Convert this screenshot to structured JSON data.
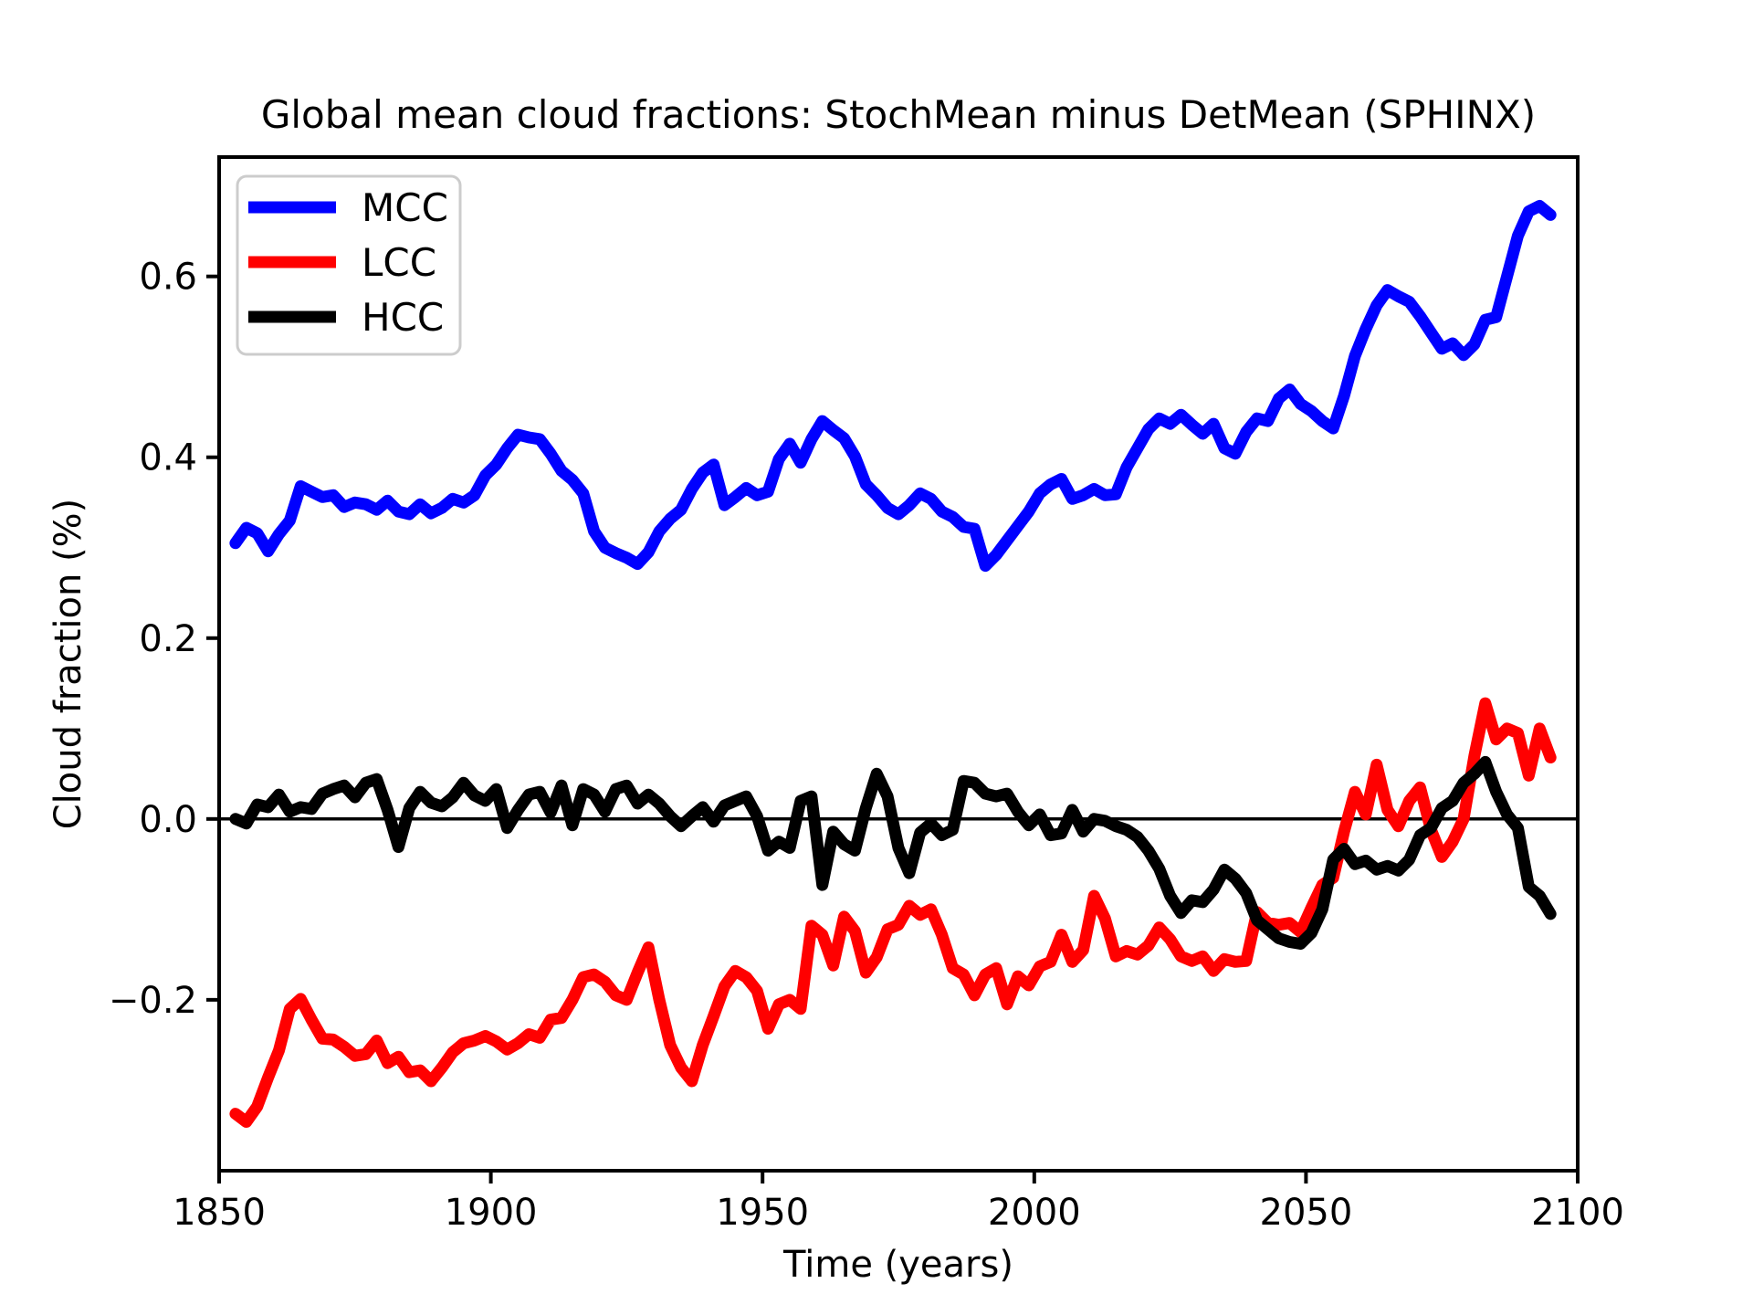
{
  "chart_data": {
    "type": "line",
    "title": "Global mean cloud fractions: StochMean minus DetMean (SPHINX)",
    "xlabel": "Time (years)",
    "ylabel": "Cloud fraction (%)",
    "xlim": [
      1850,
      2100
    ],
    "ylim": [
      -0.389,
      0.732
    ],
    "grid": false,
    "zero_line": 0.0,
    "legend_position": "upper left",
    "x_ticks": {
      "values": [
        1850,
        1900,
        1950,
        2000,
        2050,
        2100
      ],
      "labels": [
        "1850",
        "1900",
        "1950",
        "2000",
        "2050",
        "2100"
      ]
    },
    "y_ticks": {
      "values": [
        0.6,
        0.4,
        0.2,
        0.0,
        -0.2
      ],
      "labels": [
        "0.6",
        "0.4",
        "0.2",
        "0.0",
        "−0.2"
      ]
    },
    "years": [
      1853,
      1855,
      1857,
      1859,
      1861,
      1863,
      1865,
      1867,
      1869,
      1871,
      1873,
      1875,
      1877,
      1879,
      1881,
      1883,
      1885,
      1887,
      1889,
      1891,
      1893,
      1895,
      1897,
      1899,
      1901,
      1903,
      1905,
      1907,
      1909,
      1911,
      1913,
      1915,
      1917,
      1919,
      1921,
      1923,
      1925,
      1927,
      1929,
      1931,
      1933,
      1935,
      1937,
      1939,
      1941,
      1943,
      1945,
      1947,
      1949,
      1951,
      1953,
      1955,
      1957,
      1959,
      1961,
      1963,
      1965,
      1967,
      1969,
      1971,
      1973,
      1975,
      1977,
      1979,
      1981,
      1983,
      1985,
      1987,
      1989,
      1991,
      1993,
      1995,
      1997,
      1999,
      2001,
      2003,
      2005,
      2007,
      2009,
      2011,
      2013,
      2015,
      2017,
      2019,
      2021,
      2023,
      2025,
      2027,
      2029,
      2031,
      2033,
      2035,
      2037,
      2039,
      2041,
      2043,
      2045,
      2047,
      2049,
      2051,
      2053,
      2055,
      2057,
      2059,
      2061,
      2063,
      2065,
      2067,
      2069,
      2071,
      2073,
      2075,
      2077,
      2079,
      2081,
      2083,
      2085,
      2087,
      2089,
      2091,
      2093,
      2095
    ],
    "series": [
      {
        "name": "MCC",
        "color": "#0000ff",
        "values": [
          0.305,
          0.322,
          0.316,
          0.296,
          0.315,
          0.33,
          0.368,
          0.362,
          0.356,
          0.358,
          0.345,
          0.35,
          0.348,
          0.342,
          0.352,
          0.34,
          0.337,
          0.348,
          0.338,
          0.344,
          0.354,
          0.35,
          0.358,
          0.38,
          0.392,
          0.41,
          0.425,
          0.422,
          0.42,
          0.404,
          0.385,
          0.375,
          0.36,
          0.318,
          0.3,
          0.294,
          0.289,
          0.282,
          0.295,
          0.318,
          0.332,
          0.342,
          0.365,
          0.383,
          0.392,
          0.347,
          0.356,
          0.366,
          0.358,
          0.362,
          0.398,
          0.415,
          0.394,
          0.42,
          0.44,
          0.43,
          0.421,
          0.401,
          0.37,
          0.358,
          0.344,
          0.337,
          0.347,
          0.36,
          0.354,
          0.34,
          0.334,
          0.323,
          0.321,
          0.28,
          0.292,
          0.308,
          0.324,
          0.34,
          0.36,
          0.37,
          0.376,
          0.354,
          0.358,
          0.365,
          0.358,
          0.359,
          0.389,
          0.41,
          0.431,
          0.443,
          0.437,
          0.447,
          0.436,
          0.426,
          0.437,
          0.41,
          0.404,
          0.428,
          0.443,
          0.44,
          0.465,
          0.475,
          0.459,
          0.451,
          0.44,
          0.432,
          0.468,
          0.512,
          0.542,
          0.568,
          0.585,
          0.578,
          0.572,
          0.556,
          0.538,
          0.52,
          0.526,
          0.513,
          0.525,
          0.552,
          0.555,
          0.6,
          0.645,
          0.672,
          0.678,
          0.668
        ]
      },
      {
        "name": "LCC",
        "color": "#ff0000",
        "values": [
          -0.326,
          -0.335,
          -0.318,
          -0.286,
          -0.256,
          -0.21,
          -0.199,
          -0.222,
          -0.243,
          -0.244,
          -0.252,
          -0.262,
          -0.26,
          -0.245,
          -0.27,
          -0.263,
          -0.28,
          -0.278,
          -0.29,
          -0.275,
          -0.258,
          -0.248,
          -0.245,
          -0.24,
          -0.246,
          -0.255,
          -0.248,
          -0.238,
          -0.242,
          -0.222,
          -0.22,
          -0.2,
          -0.175,
          -0.172,
          -0.18,
          -0.195,
          -0.2,
          -0.17,
          -0.142,
          -0.2,
          -0.25,
          -0.275,
          -0.29,
          -0.25,
          -0.218,
          -0.185,
          -0.168,
          -0.175,
          -0.19,
          -0.232,
          -0.205,
          -0.2,
          -0.21,
          -0.118,
          -0.128,
          -0.162,
          -0.108,
          -0.124,
          -0.17,
          -0.153,
          -0.122,
          -0.117,
          -0.096,
          -0.106,
          -0.1,
          -0.128,
          -0.165,
          -0.172,
          -0.195,
          -0.172,
          -0.165,
          -0.205,
          -0.174,
          -0.184,
          -0.163,
          -0.158,
          -0.128,
          -0.158,
          -0.145,
          -0.085,
          -0.11,
          -0.152,
          -0.146,
          -0.15,
          -0.14,
          -0.12,
          -0.133,
          -0.152,
          -0.157,
          -0.152,
          -0.168,
          -0.155,
          -0.158,
          -0.157,
          -0.103,
          -0.115,
          -0.117,
          -0.115,
          -0.125,
          -0.098,
          -0.073,
          -0.065,
          -0.014,
          0.03,
          0.005,
          0.06,
          0.01,
          -0.008,
          0.02,
          0.035,
          -0.012,
          -0.042,
          -0.025,
          0.0,
          0.07,
          0.128,
          0.088,
          0.1,
          0.095,
          0.048,
          0.1,
          0.068
        ]
      },
      {
        "name": "HCC",
        "color": "#000000",
        "values": [
          0.0,
          -0.005,
          0.016,
          0.013,
          0.027,
          0.008,
          0.013,
          0.011,
          0.028,
          0.033,
          0.037,
          0.024,
          0.04,
          0.044,
          0.01,
          -0.031,
          0.012,
          0.03,
          0.018,
          0.014,
          0.024,
          0.04,
          0.026,
          0.02,
          0.033,
          -0.01,
          0.01,
          0.027,
          0.03,
          0.007,
          0.037,
          -0.007,
          0.033,
          0.027,
          0.008,
          0.033,
          0.037,
          0.017,
          0.027,
          0.017,
          0.003,
          -0.008,
          0.003,
          0.013,
          -0.003,
          0.015,
          0.02,
          0.025,
          0.003,
          -0.035,
          -0.025,
          -0.032,
          0.02,
          0.025,
          -0.073,
          -0.014,
          -0.028,
          -0.035,
          0.012,
          0.05,
          0.025,
          -0.032,
          -0.06,
          -0.015,
          -0.005,
          -0.018,
          -0.012,
          0.042,
          0.04,
          0.028,
          0.025,
          0.028,
          0.008,
          -0.007,
          0.005,
          -0.018,
          -0.016,
          0.01,
          -0.014,
          0.0,
          -0.002,
          -0.008,
          -0.012,
          -0.02,
          -0.035,
          -0.055,
          -0.085,
          -0.104,
          -0.09,
          -0.092,
          -0.078,
          -0.056,
          -0.066,
          -0.082,
          -0.112,
          -0.122,
          -0.132,
          -0.136,
          -0.138,
          -0.126,
          -0.1,
          -0.045,
          -0.033,
          -0.05,
          -0.046,
          -0.056,
          -0.052,
          -0.057,
          -0.045,
          -0.018,
          -0.01,
          0.012,
          0.02,
          0.04,
          0.05,
          0.063,
          0.03,
          0.005,
          -0.01,
          -0.075,
          -0.085,
          -0.105
        ]
      }
    ]
  }
}
